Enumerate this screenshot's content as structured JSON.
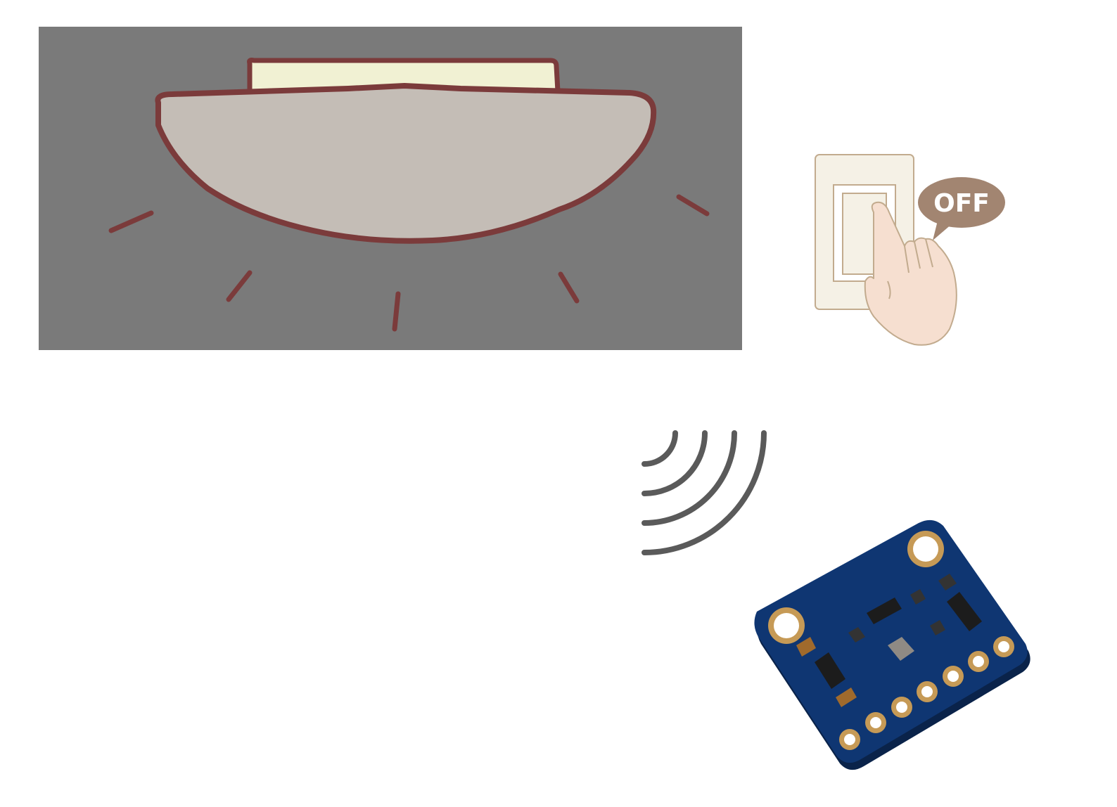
{
  "scene": {
    "switch_bubble_label": "OFF",
    "colors": {
      "panel_bg": "#7a7a7a",
      "lamp_outline": "#7b3b3b",
      "lamp_shade": "#c4bdb6",
      "lamp_base": "#f1f1d3",
      "switch_plate": "#f5f1e6",
      "switch_outline": "#c2ab8e",
      "hand_fill": "#f6dfd0",
      "bubble_fill": "#a28571",
      "bubble_text": "#ffffff",
      "wave_stroke": "#5a5a5a",
      "board_fill": "#0f3672",
      "pad_ring": "#c69a56"
    },
    "icons": [
      "ceiling-lamp-icon",
      "light-switch-icon",
      "pointing-hand-icon",
      "wireless-signal-icon",
      "sensor-board-icon"
    ]
  }
}
